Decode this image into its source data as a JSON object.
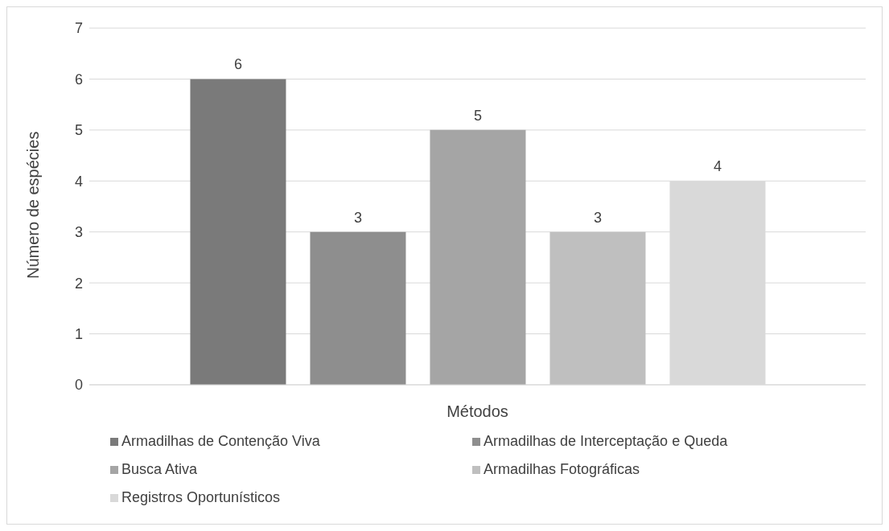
{
  "chart_data": {
    "type": "bar",
    "xlabel": "Métodos",
    "ylabel": "Número de espécies",
    "categories": [
      null
    ],
    "series": [
      {
        "name": "Armadilhas de Contenção Viva",
        "color": "#7a7a7a",
        "values": [
          6
        ]
      },
      {
        "name": "Armadilhas de Interceptação e Queda",
        "color": "#8e8e8e",
        "values": [
          3
        ]
      },
      {
        "name": "Busca Ativa",
        "color": "#a5a5a5",
        "values": [
          5
        ]
      },
      {
        "name": "Armadilhas Fotográficas",
        "color": "#bfbfbf",
        "values": [
          3
        ]
      },
      {
        "name": "Registros Oportunísticos",
        "color": "#d9d9d9",
        "values": [
          4
        ]
      }
    ],
    "ylim": [
      0,
      7
    ],
    "yticks": [
      0,
      1,
      2,
      3,
      4,
      5,
      6,
      7
    ],
    "grid": "y",
    "data_labels": true,
    "legend": "bottom"
  }
}
